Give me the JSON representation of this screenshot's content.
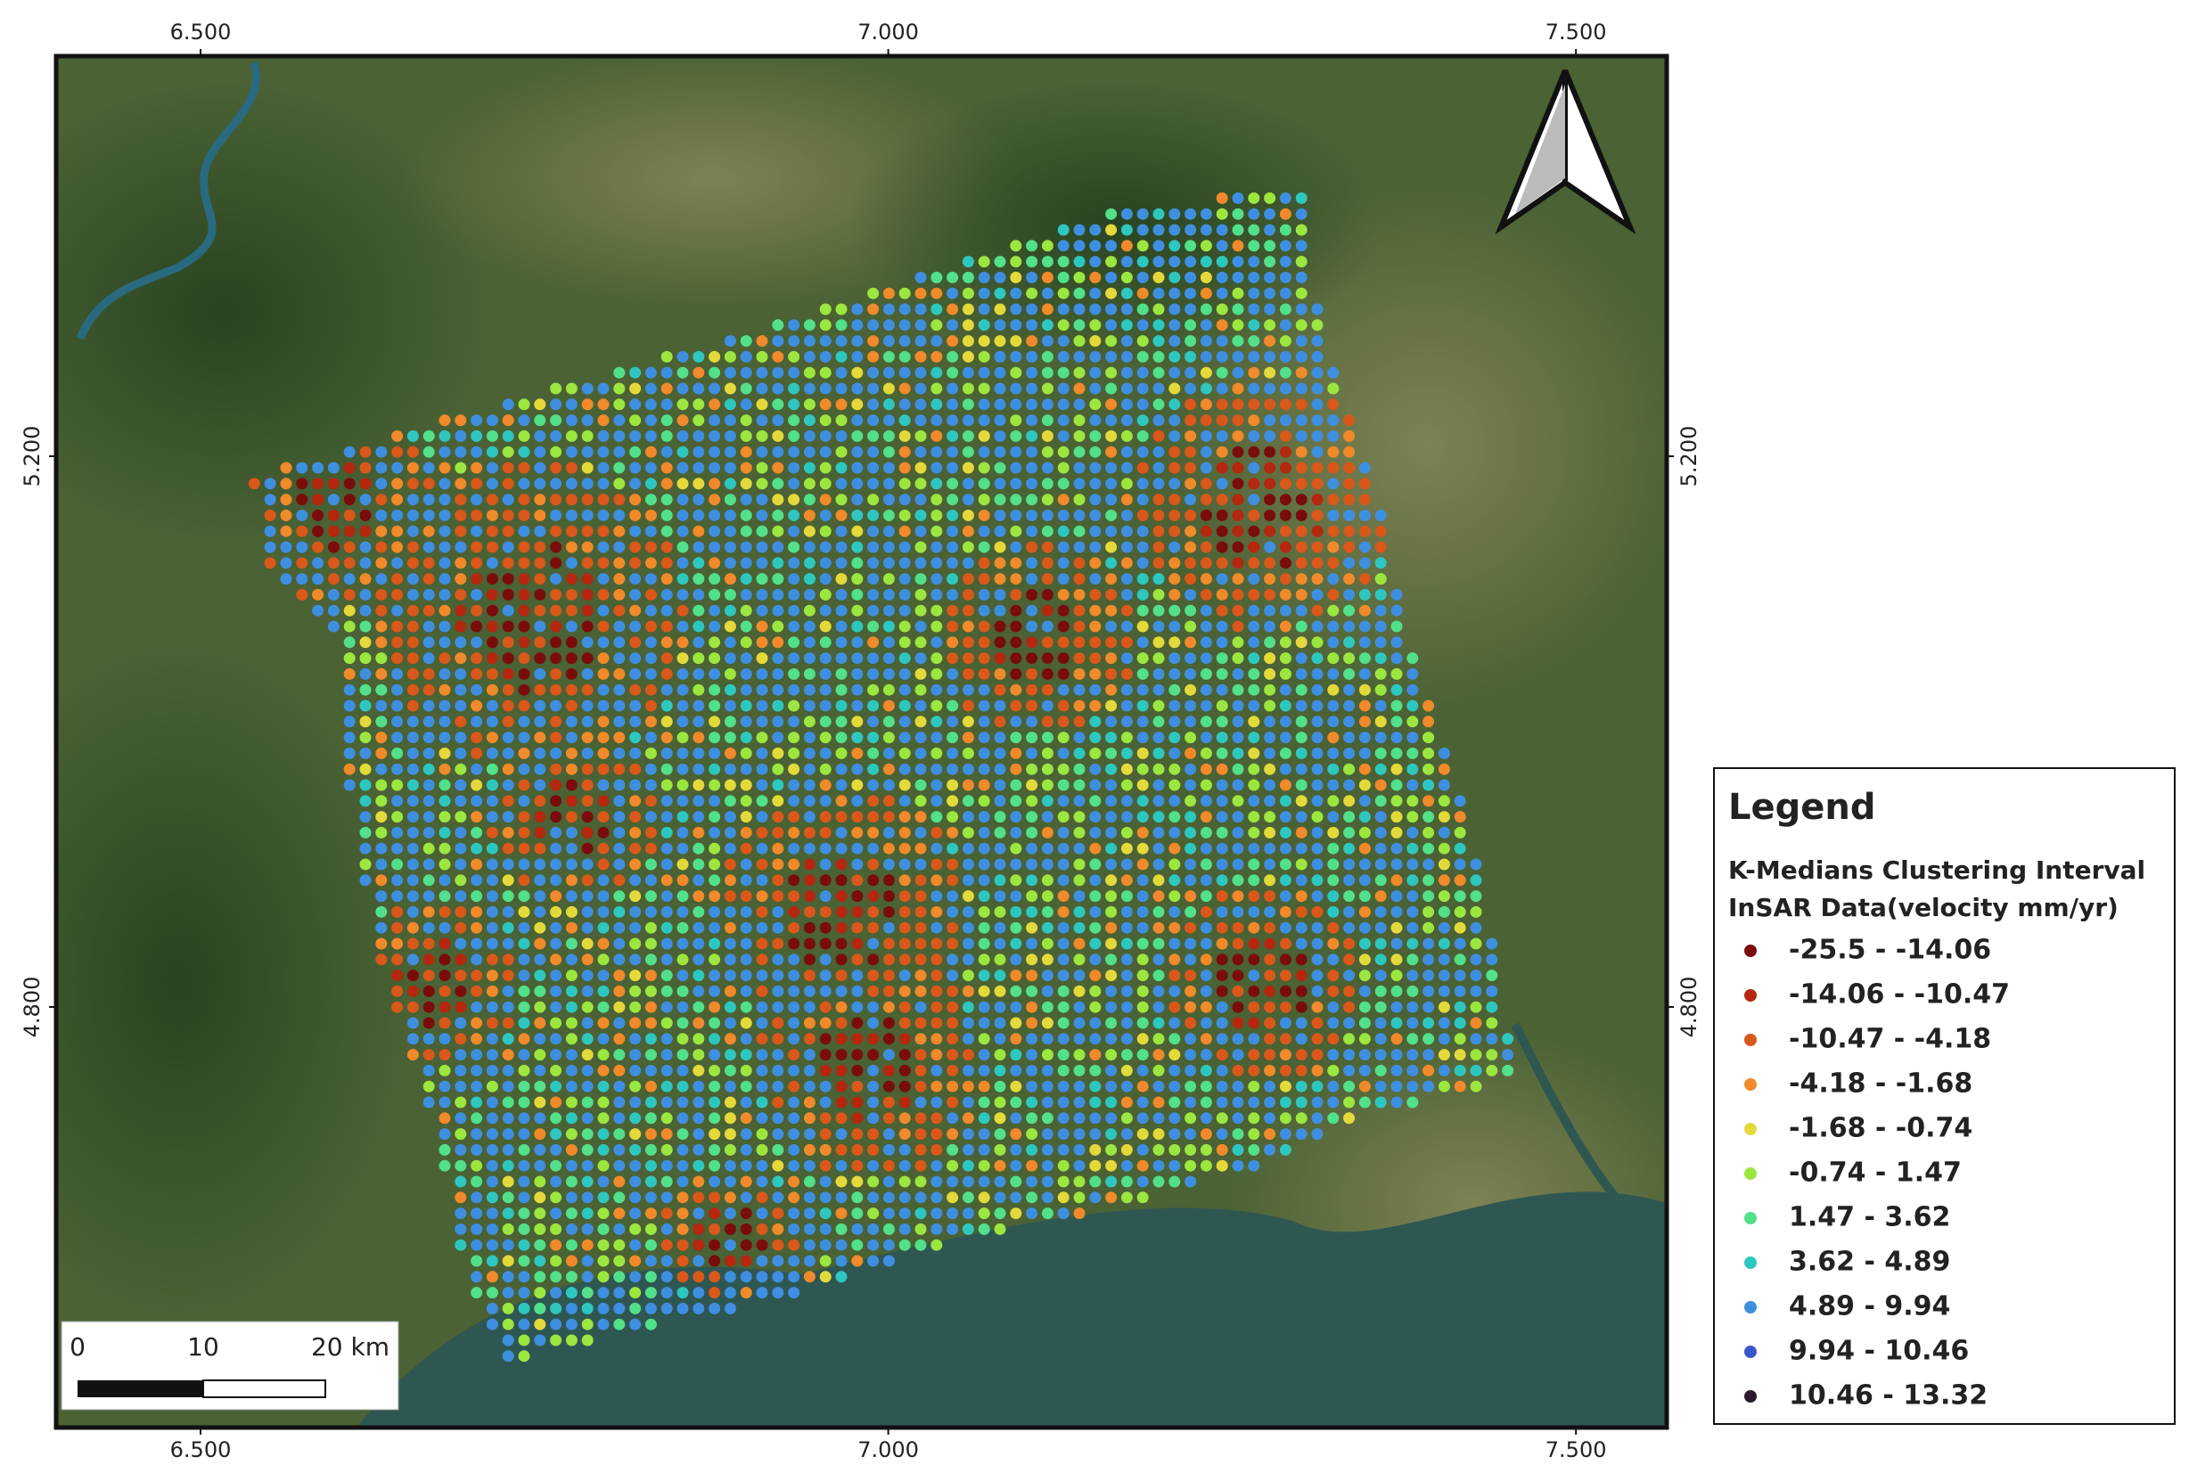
{
  "map": {
    "lon_ticks": [
      {
        "value": 6.5,
        "label": "6.500"
      },
      {
        "value": 7.0,
        "label": "7.000"
      },
      {
        "value": 7.5,
        "label": "7.500"
      }
    ],
    "lat_ticks": [
      {
        "value": 5.2,
        "label": "5.200"
      },
      {
        "value": 4.8,
        "label": "4.800"
      }
    ],
    "xlim": [
      6.395,
      7.566
    ],
    "ylim": [
      4.4945,
      5.4906
    ],
    "legend": {
      "title": "Legend",
      "layer_title": [
        "K-Medians Clustering Interval",
        "InSAR Data(velocity mm/yr)"
      ],
      "classes": [
        {
          "label": "-25.5 - -14.06",
          "color": "#7a0c0c"
        },
        {
          "label": "-14.06 - -10.47",
          "color": "#b5270f"
        },
        {
          "label": "-10.47 - -4.18",
          "color": "#d9581a"
        },
        {
          "label": "-4.18 - -1.68",
          "color": "#f08a2a"
        },
        {
          "label": "-1.68 - -0.74",
          "color": "#e4d93b"
        },
        {
          "label": "-0.74 - 1.47",
          "color": "#9ce640"
        },
        {
          "label": "1.47 - 3.62",
          "color": "#52e08a"
        },
        {
          "label": "3.62 - 4.89",
          "color": "#2ec7c0"
        },
        {
          "label": "4.89 - 9.94",
          "color": "#3f8fe0"
        },
        {
          "label": "9.94 - 10.46",
          "color": "#3b56c8"
        },
        {
          "label": "10.46 - 13.32",
          "color": "#2a1a2a"
        }
      ]
    },
    "scale_bar": {
      "labels": [
        "0",
        "10",
        "20 km"
      ]
    }
  }
}
